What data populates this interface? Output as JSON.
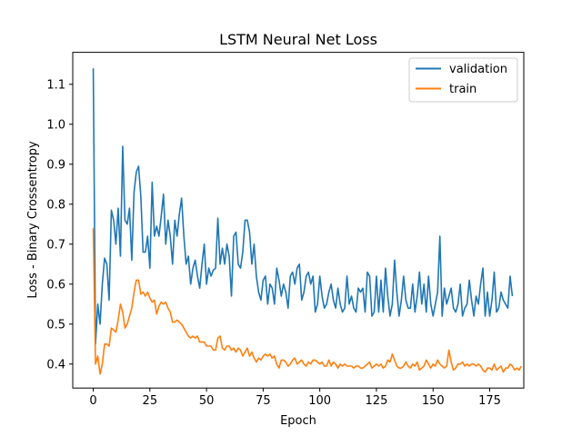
{
  "chart_data": {
    "type": "line",
    "title": "LSTM Neural Net Loss",
    "xlabel": "Epoch",
    "ylabel": "Loss - Binary Crossentropy",
    "xlim": [
      -9.05,
      190.05
    ],
    "ylim": [
      0.34,
      1.18
    ],
    "xticks": [
      0,
      25,
      50,
      75,
      100,
      125,
      150,
      175
    ],
    "yticks": [
      0.4,
      0.5,
      0.6,
      0.7,
      0.8,
      0.9,
      1.0,
      1.1
    ],
    "grid": false,
    "legend_position": "top-right",
    "series": [
      {
        "name": "validation",
        "color": "#1f77b4",
        "values": [
          1.14,
          0.45,
          0.55,
          0.5,
          0.6,
          0.665,
          0.65,
          0.56,
          0.785,
          0.76,
          0.7,
          0.79,
          0.67,
          0.945,
          0.76,
          0.75,
          0.79,
          0.66,
          0.83,
          0.88,
          0.895,
          0.82,
          0.68,
          0.68,
          0.72,
          0.64,
          0.855,
          0.72,
          0.745,
          0.72,
          0.77,
          0.825,
          0.7,
          0.76,
          0.72,
          0.65,
          0.76,
          0.72,
          0.775,
          0.815,
          0.72,
          0.65,
          0.67,
          0.6,
          0.64,
          0.66,
          0.62,
          0.59,
          0.65,
          0.7,
          0.6,
          0.64,
          0.62,
          0.635,
          0.64,
          0.765,
          0.65,
          0.69,
          0.65,
          0.7,
          0.67,
          0.57,
          0.72,
          0.73,
          0.65,
          0.64,
          0.68,
          0.76,
          0.76,
          0.73,
          0.65,
          0.7,
          0.62,
          0.58,
          0.56,
          0.61,
          0.62,
          0.55,
          0.6,
          0.59,
          0.55,
          0.64,
          0.61,
          0.57,
          0.6,
          0.58,
          0.54,
          0.62,
          0.63,
          0.6,
          0.64,
          0.65,
          0.56,
          0.58,
          0.62,
          0.63,
          0.6,
          0.62,
          0.53,
          0.55,
          0.62,
          0.57,
          0.54,
          0.55,
          0.58,
          0.6,
          0.56,
          0.54,
          0.59,
          0.55,
          0.53,
          0.54,
          0.62,
          0.55,
          0.57,
          0.54,
          0.53,
          0.59,
          0.58,
          0.59,
          0.53,
          0.63,
          0.62,
          0.52,
          0.53,
          0.62,
          0.53,
          0.61,
          0.53,
          0.64,
          0.57,
          0.52,
          0.55,
          0.66,
          0.58,
          0.52,
          0.56,
          0.62,
          0.56,
          0.54,
          0.54,
          0.6,
          0.53,
          0.57,
          0.63,
          0.55,
          0.6,
          0.53,
          0.62,
          0.55,
          0.52,
          0.55,
          0.58,
          0.72,
          0.52,
          0.59,
          0.55,
          0.57,
          0.59,
          0.54,
          0.53,
          0.55,
          0.6,
          0.52,
          0.54,
          0.55,
          0.61,
          0.56,
          0.52,
          0.57,
          0.55,
          0.6,
          0.64,
          0.52,
          0.58,
          0.52,
          0.56,
          0.63,
          0.53,
          0.54,
          0.58,
          0.56,
          0.55,
          0.54,
          0.62,
          0.57
        ]
      },
      {
        "name": "train",
        "color": "#ff7f0e",
        "values": [
          0.74,
          0.4,
          0.42,
          0.375,
          0.4,
          0.45,
          0.45,
          0.445,
          0.49,
          0.485,
          0.48,
          0.51,
          0.55,
          0.53,
          0.49,
          0.5,
          0.52,
          0.54,
          0.58,
          0.61,
          0.61,
          0.575,
          0.58,
          0.57,
          0.58,
          0.565,
          0.555,
          0.56,
          0.525,
          0.545,
          0.555,
          0.55,
          0.555,
          0.54,
          0.53,
          0.505,
          0.505,
          0.51,
          0.505,
          0.5,
          0.49,
          0.48,
          0.47,
          0.465,
          0.47,
          0.465,
          0.47,
          0.455,
          0.455,
          0.455,
          0.445,
          0.445,
          0.445,
          0.435,
          0.435,
          0.465,
          0.47,
          0.44,
          0.435,
          0.445,
          0.445,
          0.435,
          0.44,
          0.43,
          0.44,
          0.435,
          0.42,
          0.43,
          0.44,
          0.42,
          0.43,
          0.415,
          0.405,
          0.415,
          0.41,
          0.42,
          0.425,
          0.42,
          0.425,
          0.415,
          0.42,
          0.4,
          0.39,
          0.41,
          0.41,
          0.405,
          0.395,
          0.4,
          0.41,
          0.415,
          0.4,
          0.405,
          0.41,
          0.4,
          0.395,
          0.405,
          0.4,
          0.41,
          0.41,
          0.405,
          0.4,
          0.405,
          0.395,
          0.395,
          0.41,
          0.395,
          0.405,
          0.4,
          0.39,
          0.4,
          0.395,
          0.4,
          0.395,
          0.395,
          0.395,
          0.39,
          0.395,
          0.395,
          0.39,
          0.39,
          0.395,
          0.4,
          0.405,
          0.39,
          0.395,
          0.4,
          0.395,
          0.4,
          0.39,
          0.395,
          0.41,
          0.405,
          0.425,
          0.41,
          0.395,
          0.39,
          0.39,
          0.395,
          0.405,
          0.395,
          0.39,
          0.4,
          0.395,
          0.405,
          0.385,
          0.39,
          0.395,
          0.41,
          0.4,
          0.39,
          0.4,
          0.395,
          0.41,
          0.4,
          0.395,
          0.39,
          0.395,
          0.435,
          0.405,
          0.385,
          0.39,
          0.4,
          0.4,
          0.405,
          0.395,
          0.4,
          0.395,
          0.4,
          0.4,
          0.395,
          0.4,
          0.395,
          0.385,
          0.38,
          0.39,
          0.39,
          0.385,
          0.4,
          0.385,
          0.39,
          0.395,
          0.38,
          0.39,
          0.39,
          0.4,
          0.395,
          0.385,
          0.39,
          0.385,
          0.395
        ]
      }
    ]
  }
}
